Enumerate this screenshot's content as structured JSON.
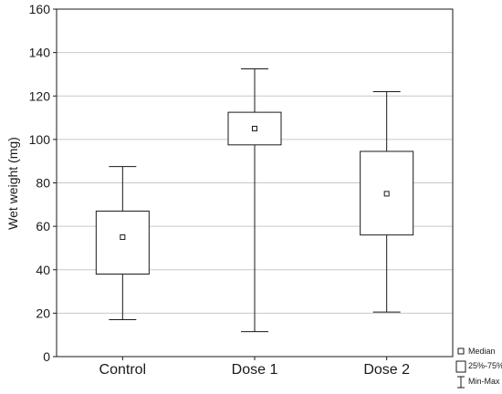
{
  "chart_data": {
    "type": "box",
    "categories": [
      "Control",
      "Dose 1",
      "Dose 2"
    ],
    "boxes": [
      {
        "category": "Control",
        "min": 17,
        "q1": 38,
        "median": 55,
        "q3": 67,
        "max": 87.5
      },
      {
        "category": "Dose 1",
        "min": 11.5,
        "q1": 97.5,
        "median": 105,
        "q3": 112.5,
        "max": 132.5
      },
      {
        "category": "Dose 2",
        "min": 20.5,
        "q1": 56,
        "median": 75,
        "q3": 94.5,
        "max": 122
      }
    ],
    "title": "",
    "xlabel": "",
    "ylabel": "Wet weight (mg)",
    "ylim": [
      0,
      160
    ],
    "yticks": [
      0,
      20,
      40,
      60,
      80,
      100,
      120,
      140,
      160
    ],
    "grid": true,
    "legend": {
      "placement": "bottom-right",
      "entries": [
        {
          "key": "median",
          "label": "Median"
        },
        {
          "key": "box",
          "label": "25%-75%"
        },
        {
          "key": "whisker",
          "label": "Min-Max"
        }
      ]
    }
  }
}
